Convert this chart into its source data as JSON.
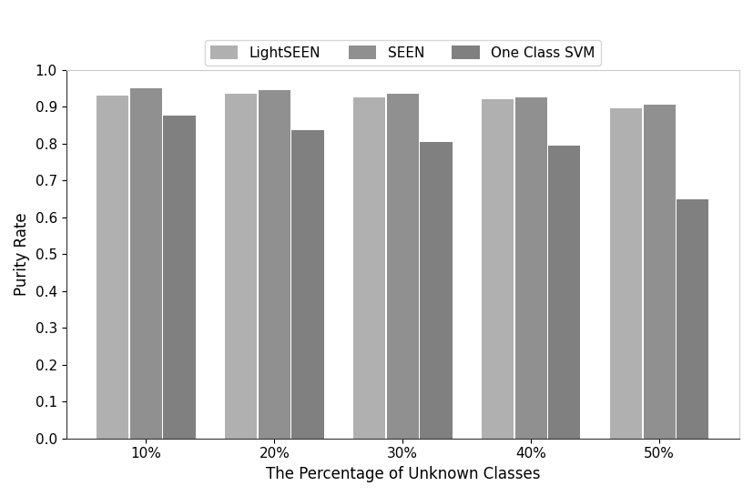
{
  "categories": [
    "10%",
    "20%",
    "30%",
    "40%",
    "50%"
  ],
  "series": {
    "LightSEEN": [
      0.93,
      0.935,
      0.925,
      0.92,
      0.895
    ],
    "SEEN": [
      0.95,
      0.945,
      0.935,
      0.925,
      0.905
    ],
    "One Class SVM": [
      0.875,
      0.835,
      0.805,
      0.793,
      0.648
    ]
  },
  "colors": {
    "LightSEEN": "#b0b0b0",
    "SEEN": "#909090",
    "One Class SVM": "#808080"
  },
  "xlabel": "The Percentage of Unknown Classes",
  "ylabel": "Purity Rate",
  "ylim": [
    0.0,
    1.0
  ],
  "yticks": [
    0.0,
    0.1,
    0.2,
    0.3,
    0.4,
    0.5,
    0.6,
    0.7,
    0.8,
    0.9,
    1.0
  ],
  "bar_width": 0.25,
  "bar_spacing": 0.01,
  "legend_loc": "upper center",
  "legend_ncol": 3,
  "label_fontsize": 12,
  "tick_fontsize": 11,
  "legend_fontsize": 11
}
